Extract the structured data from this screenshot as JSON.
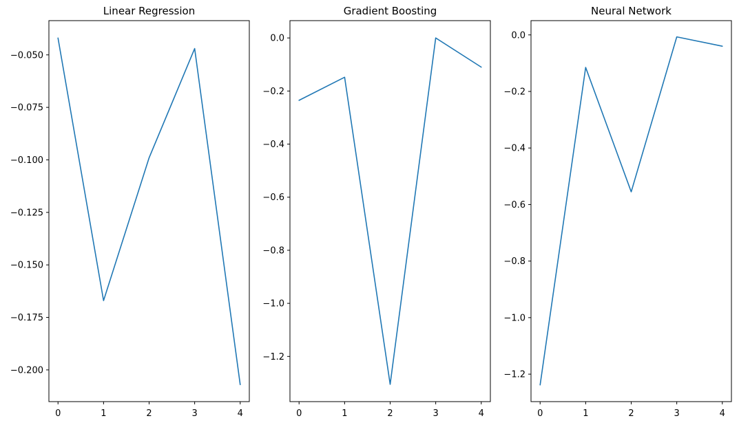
{
  "colors": {
    "series": "#1f77b4",
    "axes": "#000000",
    "background": "#ffffff"
  },
  "chart_data": [
    {
      "type": "line",
      "title": "Linear Regression",
      "xlabel": "",
      "ylabel": "",
      "x": [
        0,
        1,
        2,
        3,
        4
      ],
      "series": [
        {
          "values": [
            -0.042,
            -0.167,
            -0.099,
            -0.047,
            -0.207
          ]
        }
      ],
      "xlim": [
        -0.2,
        4.2
      ],
      "ylim": [
        -0.2151,
        -0.0337
      ],
      "xticks": [
        0,
        1,
        2,
        3,
        4
      ],
      "xtick_labels": [
        "0",
        "1",
        "2",
        "3",
        "4"
      ],
      "yticks": [
        -0.05,
        -0.075,
        -0.1,
        -0.125,
        -0.15,
        -0.175,
        -0.2
      ],
      "ytick_labels": [
        "−0.050",
        "−0.075",
        "−0.100",
        "−0.125",
        "−0.150",
        "−0.175",
        "−0.200"
      ],
      "grid": false
    },
    {
      "type": "line",
      "title": "Gradient Boosting",
      "xlabel": "",
      "ylabel": "",
      "x": [
        0,
        1,
        2,
        3,
        4
      ],
      "series": [
        {
          "values": [
            -0.235,
            -0.148,
            -1.305,
            0.0,
            -0.11
          ]
        }
      ],
      "xlim": [
        -0.2,
        4.2
      ],
      "ylim": [
        -1.3702,
        0.0652
      ],
      "xticks": [
        0,
        1,
        2,
        3,
        4
      ],
      "xtick_labels": [
        "0",
        "1",
        "2",
        "3",
        "4"
      ],
      "yticks": [
        0.0,
        -0.2,
        -0.4,
        -0.6,
        -0.8,
        -1.0,
        -1.2
      ],
      "ytick_labels": [
        "0.0",
        "−0.2",
        "−0.4",
        "−0.6",
        "−0.8",
        "−1.0",
        "−1.2"
      ],
      "grid": false
    },
    {
      "type": "line",
      "title": "Neural Network",
      "xlabel": "",
      "ylabel": "",
      "x": [
        0,
        1,
        2,
        3,
        4
      ],
      "series": [
        {
          "values": [
            -1.238,
            -0.115,
            -0.555,
            -0.007,
            -0.04
          ]
        }
      ],
      "xlim": [
        -0.2,
        4.2
      ],
      "ylim": [
        -1.2971,
        0.0505
      ],
      "xticks": [
        0,
        1,
        2,
        3,
        4
      ],
      "xtick_labels": [
        "0",
        "1",
        "2",
        "3",
        "4"
      ],
      "yticks": [
        0.0,
        -0.2,
        -0.4,
        -0.6,
        -0.8,
        -1.0,
        -1.2
      ],
      "ytick_labels": [
        "0.0",
        "−0.2",
        "−0.4",
        "−0.6",
        "−0.8",
        "−1.0",
        "−1.2"
      ],
      "grid": false
    }
  ]
}
